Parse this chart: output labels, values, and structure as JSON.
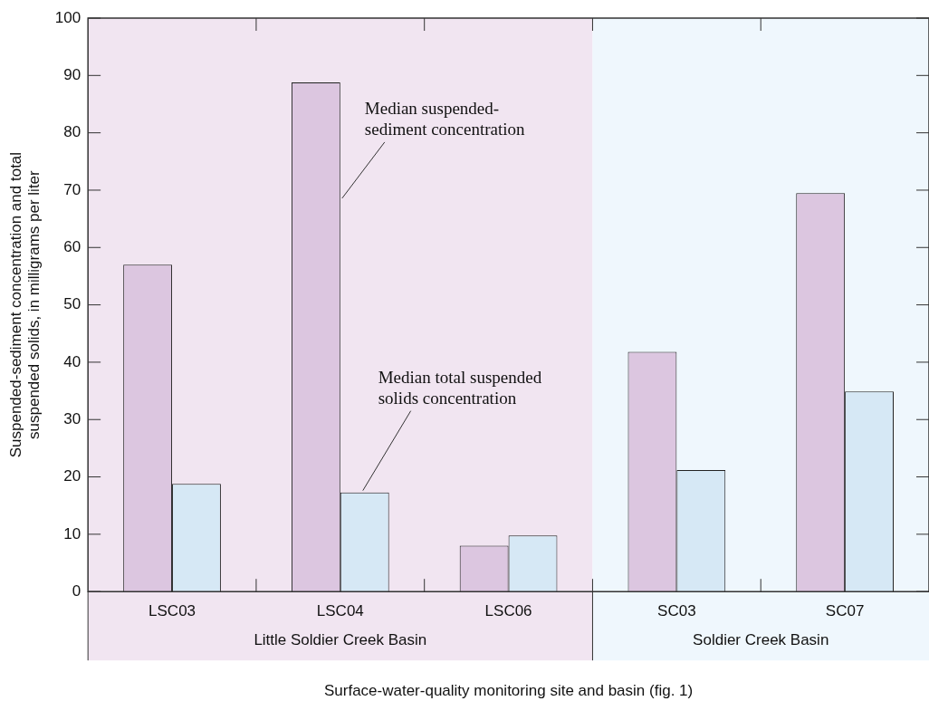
{
  "chart_data": {
    "type": "bar",
    "xlabel": "Surface-water-quality monitoring site and basin (fig. 1)",
    "ylabel": "Suspended-sediment concentration and total suspended solids, in milligrams per liter",
    "categories": [
      "LSC03",
      "LSC04",
      "LSC06",
      "SC03",
      "SC07"
    ],
    "series": [
      {
        "name": "Median suspended-sediment concentration",
        "color": "#dcc6e0",
        "values": [
          57,
          88.8,
          8,
          41.8,
          69.5
        ]
      },
      {
        "name": "Median total suspended solids concentration",
        "color": "#d6e8f5",
        "values": [
          18.8,
          17.3,
          9.8,
          21.2,
          34.9
        ]
      }
    ],
    "ylim": [
      0,
      100
    ],
    "yticks": [
      0,
      10,
      20,
      30,
      40,
      50,
      60,
      70,
      80,
      90,
      100
    ],
    "bands": [
      {
        "axis": "x",
        "from": "LSC03",
        "to": "LSC06",
        "label": "Little Soldier Creek Basin",
        "color": "#f1e5f1"
      },
      {
        "axis": "x",
        "from": "SC03",
        "to": "SC07",
        "label": "Soldier Creek Basin",
        "color": "#eff7fd"
      }
    ],
    "legend": false
  }
}
